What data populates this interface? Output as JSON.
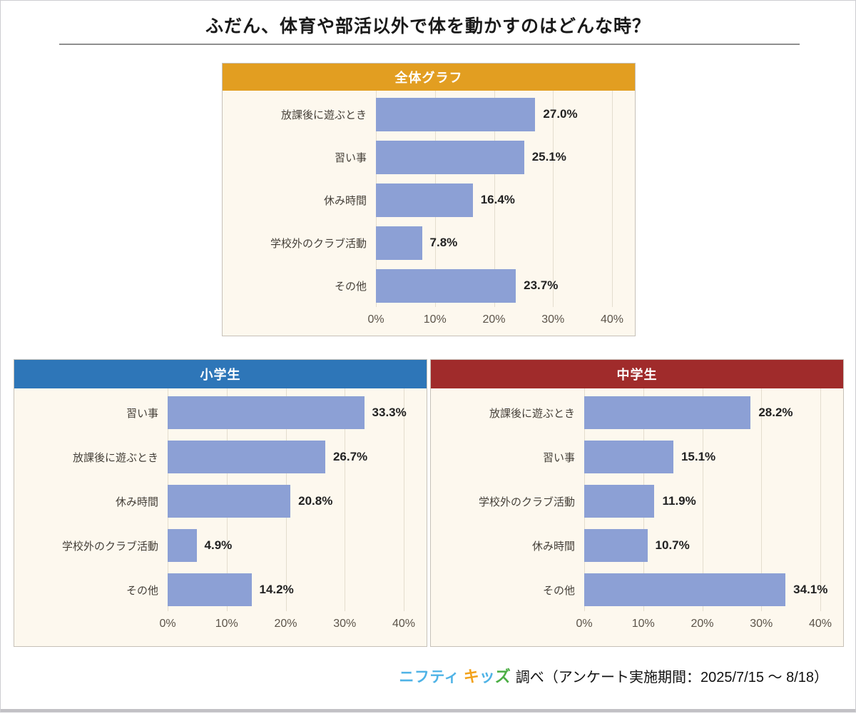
{
  "page": {
    "title": "ふだん、体育や部活以外で体を動かすのはどんな時？"
  },
  "colors": {
    "bar_fill": "#8CA0D5",
    "panel_background": "#FDF8EE",
    "grid_line": "#E4DDCE",
    "header_overall": "#E29E21",
    "header_elementary": "#2E76B8",
    "header_junior_high": "#A02B2B",
    "logo_nifty_blue": "#4FB3E6"
  },
  "chart_data": [
    {
      "id": "overall",
      "type": "bar",
      "orientation": "horizontal",
      "title": "全体グラフ",
      "header_color": "#E29E21",
      "categories": [
        "放課後に遊ぶとき",
        "習い事",
        "休み時間",
        "学校外のクラブ活動",
        "その他"
      ],
      "values": [
        27.0,
        25.1,
        16.4,
        7.8,
        23.7
      ],
      "value_labels": [
        "27.0%",
        "25.1%",
        "16.4%",
        "7.8%",
        "23.7%"
      ],
      "xlim": [
        0,
        40
      ],
      "xticks": [
        0,
        10,
        20,
        30,
        40
      ],
      "xtick_labels": [
        "0%",
        "10%",
        "20%",
        "30%",
        "40%"
      ],
      "grid": true,
      "legend": false
    },
    {
      "id": "elementary",
      "type": "bar",
      "orientation": "horizontal",
      "title": "小学生",
      "header_color": "#2E76B8",
      "categories": [
        "習い事",
        "放課後に遊ぶとき",
        "休み時間",
        "学校外のクラブ活動",
        "その他"
      ],
      "values": [
        33.3,
        26.7,
        20.8,
        4.9,
        14.2
      ],
      "value_labels": [
        "33.3%",
        "26.7%",
        "20.8%",
        "4.9%",
        "14.2%"
      ],
      "xlim": [
        0,
        40
      ],
      "xticks": [
        0,
        10,
        20,
        30,
        40
      ],
      "xtick_labels": [
        "0%",
        "10%",
        "20%",
        "30%",
        "40%"
      ],
      "grid": true,
      "legend": false
    },
    {
      "id": "junior_high",
      "type": "bar",
      "orientation": "horizontal",
      "title": "中学生",
      "header_color": "#A02B2B",
      "categories": [
        "放課後に遊ぶとき",
        "習い事",
        "学校外のクラブ活動",
        "休み時間",
        "その他"
      ],
      "values": [
        28.2,
        15.1,
        11.9,
        10.7,
        34.1
      ],
      "value_labels": [
        "28.2%",
        "15.1%",
        "11.9%",
        "10.7%",
        "34.1%"
      ],
      "xlim": [
        0,
        40
      ],
      "xticks": [
        0,
        10,
        20,
        30,
        40
      ],
      "xtick_labels": [
        "0%",
        "10%",
        "20%",
        "30%",
        "40%"
      ],
      "grid": true,
      "legend": false
    }
  ],
  "footer": {
    "logo_part1": "ニフティ",
    "logo_part2": [
      {
        "ch": "キ",
        "color": "#F2A21C"
      },
      {
        "ch": "ッ",
        "color": "#4FB3E6"
      },
      {
        "ch": "ズ",
        "color": "#4CAE45"
      }
    ],
    "note": "調べ（アンケート実施期間：2025/7/15 ～ 8/18）"
  }
}
